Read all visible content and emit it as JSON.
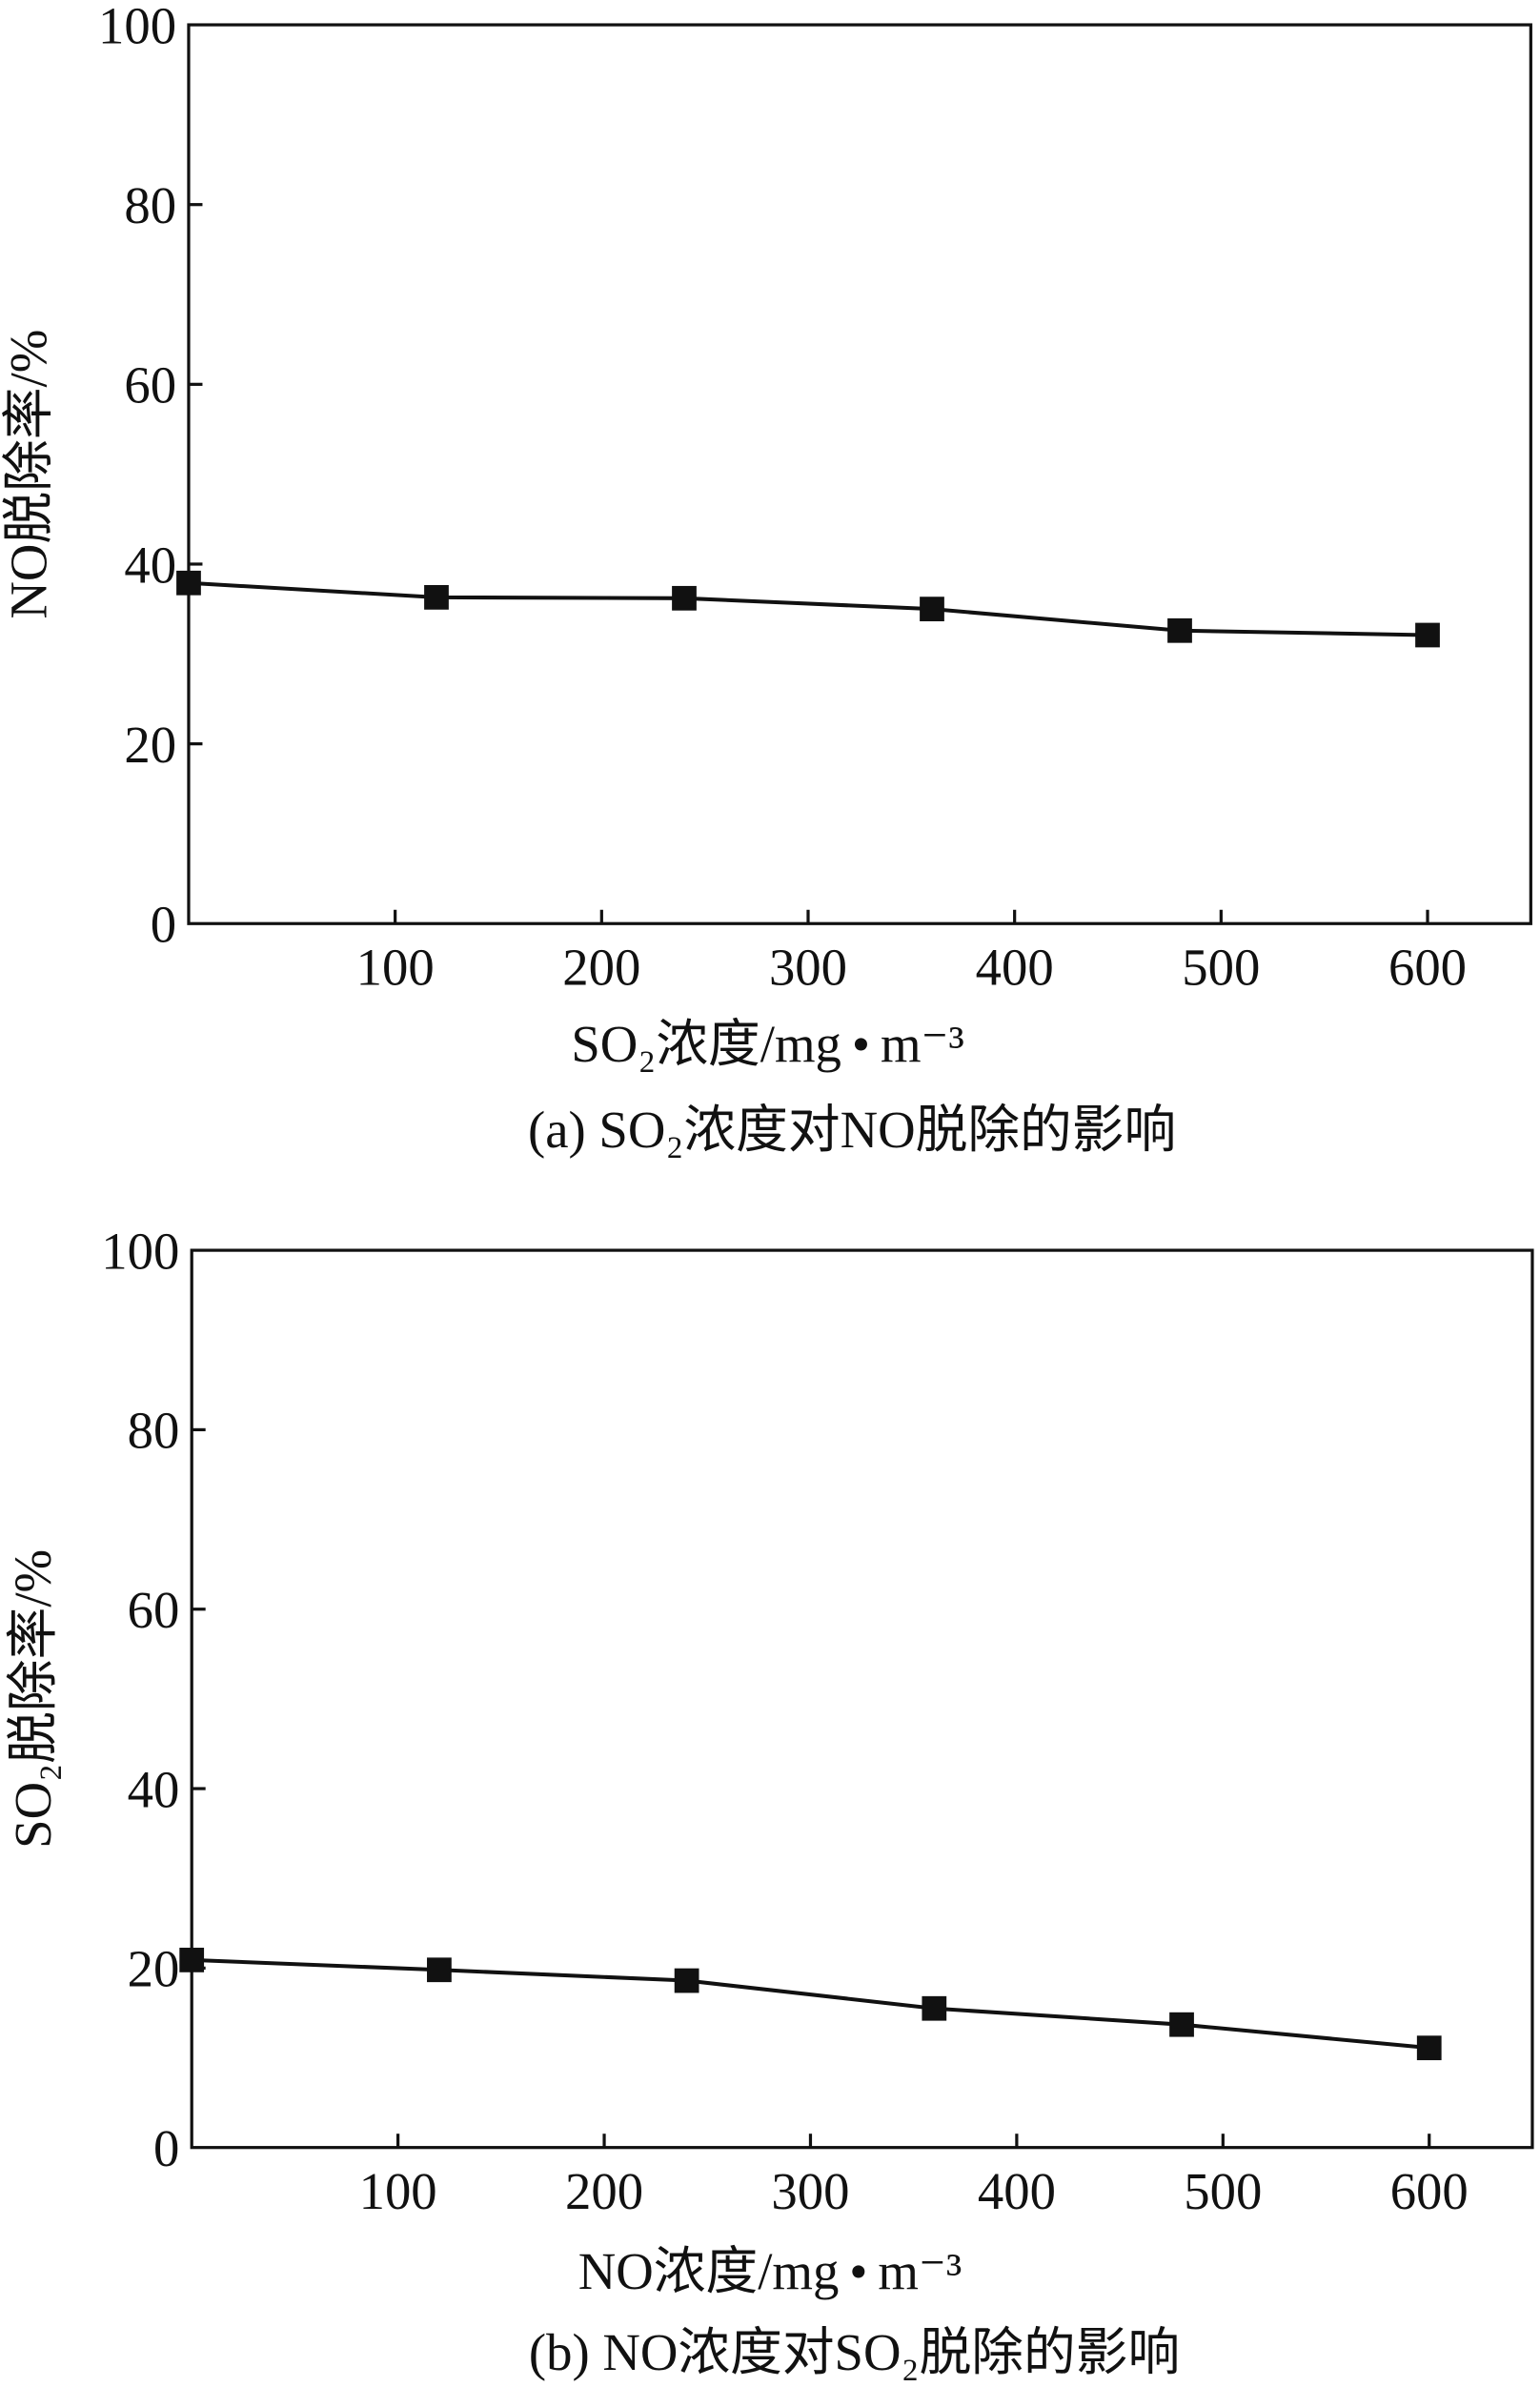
{
  "chart_data": [
    {
      "type": "line",
      "caption": "(a) SO₂浓度对NO脱除的影响",
      "xlabel": "SO₂浓度/mg • m⁻³",
      "ylabel": "NO脱除率/%",
      "xlim": [
        0,
        650
      ],
      "ylim": [
        0,
        100
      ],
      "xticks": [
        100,
        200,
        300,
        400,
        500,
        600
      ],
      "yticks": [
        0,
        20,
        40,
        60,
        80,
        100
      ],
      "x": [
        0,
        120,
        240,
        360,
        480,
        600
      ],
      "series": [
        {
          "name": "NO脱除率",
          "marker": "square",
          "values": [
            37.9,
            36.3,
            36.2,
            35.0,
            32.6,
            32.1
          ]
        }
      ],
      "grid": false
    },
    {
      "type": "line",
      "caption": "(b) NO浓度对SO₂脱除的影响",
      "xlabel": "NO浓度/mg • m⁻³",
      "ylabel": "SO₂脱除率/%",
      "xlim": [
        0,
        650
      ],
      "ylim": [
        0,
        100
      ],
      "xticks": [
        100,
        200,
        300,
        400,
        500,
        600
      ],
      "yticks": [
        0,
        20,
        40,
        60,
        80,
        100
      ],
      "x": [
        0,
        120,
        240,
        360,
        480,
        600
      ],
      "series": [
        {
          "name": "SO₂脱除率",
          "marker": "square",
          "values": [
            20.9,
            19.8,
            18.6,
            15.5,
            13.7,
            11.1
          ]
        }
      ],
      "grid": false
    }
  ]
}
